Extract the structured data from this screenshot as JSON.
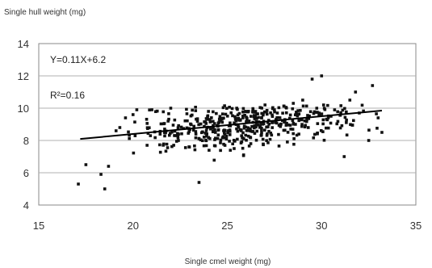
{
  "chart_data": {
    "type": "scatter",
    "title": "",
    "ylabel": "Single hull weight (mg)",
    "xlabel": "Single cmel weight (mg)",
    "xlim": [
      15,
      35
    ],
    "ylim": [
      4,
      14
    ],
    "xticks": [
      "15",
      "20",
      "25",
      "30",
      "35"
    ],
    "yticks": [
      "4",
      "6",
      "8",
      "10",
      "12",
      "14"
    ],
    "grid": "horizontal",
    "annotations": {
      "equation": "Y=0.11X+6.2",
      "r_squared": "R²=0.16"
    },
    "trendline": {
      "slope": 0.11,
      "intercept": 6.2,
      "x_range": [
        17.2,
        33.2
      ]
    },
    "marker_color": "#111111",
    "seed": 7,
    "series": [
      {
        "points_explicit": [
          [
            17.1,
            5.3
          ],
          [
            18.5,
            5.0
          ],
          [
            18.3,
            5.9
          ],
          [
            17.5,
            6.5
          ],
          [
            18.7,
            6.4
          ],
          [
            19.1,
            8.6
          ],
          [
            19.3,
            8.8
          ],
          [
            19.6,
            9.4
          ],
          [
            20.0,
            9.6
          ],
          [
            20.2,
            9.9
          ],
          [
            23.5,
            5.4
          ],
          [
            29.5,
            11.8
          ],
          [
            30.0,
            12.0
          ],
          [
            32.7,
            11.4
          ],
          [
            31.5,
            10.5
          ],
          [
            31.8,
            11.0
          ],
          [
            33.0,
            9.4
          ],
          [
            28.5,
            10.3
          ],
          [
            29.0,
            10.5
          ],
          [
            22.0,
            10.0
          ],
          [
            24.0,
            9.8
          ],
          [
            25.5,
            10.0
          ],
          [
            27.0,
            10.2
          ],
          [
            26.5,
            9.8
          ],
          [
            21.0,
            9.9
          ],
          [
            32.0,
            9.7
          ],
          [
            30.5,
            9.5
          ],
          [
            33.2,
            8.5
          ],
          [
            32.5,
            8.0
          ],
          [
            31.2,
            7.0
          ]
        ],
        "cloud": {
          "count": 470,
          "x_range": [
            19.5,
            33.0
          ],
          "x_mean": 26.0,
          "x_sd": 3.0,
          "slope": 0.11,
          "intercept": 6.2,
          "y_sd": 0.75,
          "y_min": 5.6,
          "y_max": 10.2
        }
      }
    ]
  }
}
